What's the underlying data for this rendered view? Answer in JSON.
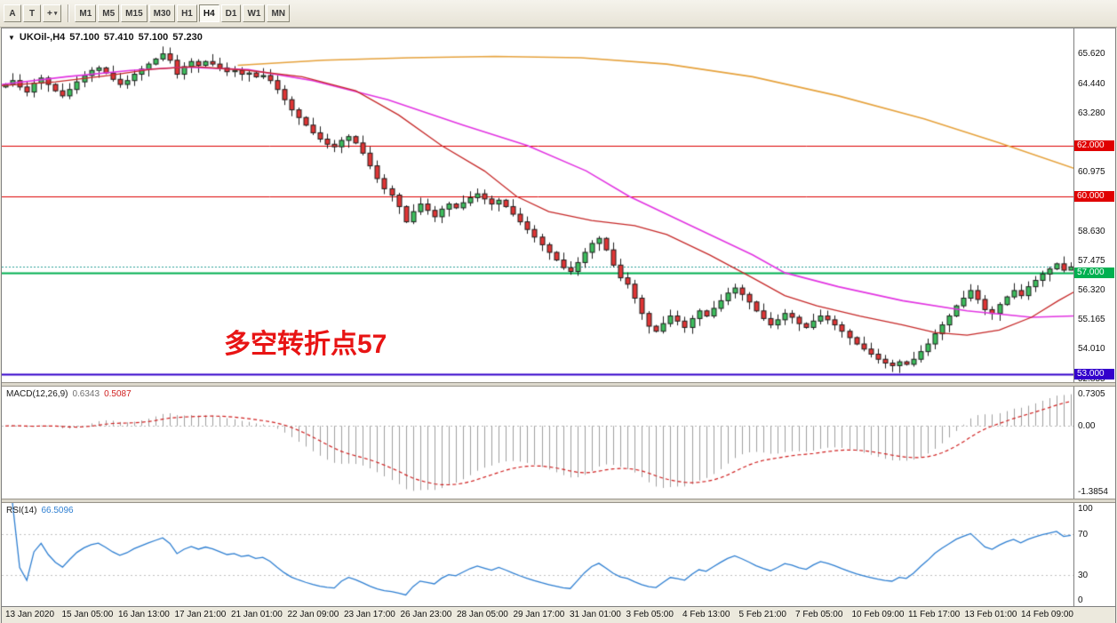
{
  "toolbar": {
    "left_buttons": [
      {
        "name": "tool-a-button",
        "label": "A"
      },
      {
        "name": "tool-t-button",
        "label": "T"
      },
      {
        "name": "drawing-tool-dropdown",
        "label": "+",
        "dropdown": true
      }
    ],
    "timeframes": [
      "M1",
      "M5",
      "M15",
      "M30",
      "H1",
      "H4",
      "D1",
      "W1",
      "MN"
    ],
    "active_timeframe": "H4"
  },
  "chart": {
    "symbol_title": "UKOil-,H4",
    "dropdown_icon": "▼",
    "ohlc": {
      "open": "57.100",
      "high": "57.410",
      "low": "57.100",
      "close": "57.230"
    },
    "annotation": {
      "text": "多空转折点57",
      "color": "#e81414"
    },
    "ylim": [
      52.7,
      66.6
    ],
    "first_open": 64.3,
    "closes": [
      64.4,
      64.55,
      64.3,
      64.1,
      64.45,
      64.65,
      64.4,
      64.15,
      63.95,
      64.2,
      64.5,
      64.75,
      64.95,
      65.05,
      64.85,
      64.6,
      64.4,
      64.55,
      64.8,
      65.0,
      65.2,
      65.4,
      65.6,
      65.35,
      64.8,
      65.1,
      65.3,
      65.15,
      65.3,
      65.2,
      65.05,
      64.9,
      64.95,
      64.8,
      64.85,
      64.7,
      64.75,
      64.55,
      64.2,
      63.8,
      63.4,
      63.1,
      62.8,
      62.5,
      62.25,
      62.05,
      61.95,
      62.2,
      62.35,
      62.1,
      61.7,
      61.2,
      60.7,
      60.3,
      60.05,
      59.6,
      59.0,
      59.4,
      59.7,
      59.45,
      59.2,
      59.5,
      59.7,
      59.55,
      59.75,
      59.95,
      60.1,
      59.9,
      59.7,
      59.85,
      59.6,
      59.3,
      59.0,
      58.7,
      58.4,
      58.1,
      57.8,
      57.5,
      57.2,
      57.05,
      57.4,
      57.8,
      58.15,
      58.35,
      57.9,
      57.3,
      56.8,
      56.55,
      56.0,
      55.4,
      54.9,
      54.7,
      55.0,
      55.3,
      55.1,
      54.85,
      55.2,
      55.5,
      55.3,
      55.6,
      55.9,
      56.2,
      56.4,
      56.15,
      55.85,
      55.5,
      55.2,
      54.95,
      55.15,
      55.4,
      55.25,
      55.0,
      54.85,
      55.1,
      55.3,
      55.15,
      54.95,
      54.7,
      54.45,
      54.2,
      54.0,
      53.8,
      53.6,
      53.45,
      53.35,
      53.5,
      53.4,
      53.6,
      53.9,
      54.2,
      54.6,
      54.95,
      55.3,
      55.7,
      56.0,
      56.3,
      55.95,
      55.55,
      55.4,
      55.75,
      56.05,
      56.3,
      56.1,
      56.45,
      56.7,
      56.95,
      57.15,
      57.35,
      57.1,
      57.23
    ],
    "candle_colors": {
      "up": "#3dbd5d",
      "down": "#e03535",
      "outline": "#1e1e1e"
    },
    "axis_labels": [
      {
        "text": "65.620",
        "price": 65.62
      },
      {
        "text": "64.440",
        "price": 64.44
      },
      {
        "text": "63.280",
        "price": 63.28
      },
      {
        "text": "60.975",
        "price": 60.975
      },
      {
        "text": "58.630",
        "price": 58.63
      },
      {
        "text": "57.475",
        "price": 57.475
      },
      {
        "text": "56.320",
        "price": 56.32
      },
      {
        "text": "55.165",
        "price": 55.165
      },
      {
        "text": "54.010",
        "price": 54.01
      },
      {
        "text": "52.855",
        "price": 52.855
      }
    ],
    "price_tags": [
      {
        "text": "62.000",
        "price": 62.0,
        "color": "#e00000"
      },
      {
        "text": "60.000",
        "price": 60.0,
        "color": "#e00000"
      },
      {
        "text": "57.000",
        "price": 57.0,
        "color": "#00b050"
      },
      {
        "text": "53.000",
        "price": 53.0,
        "color": "#3300cc"
      }
    ],
    "hlines": [
      {
        "price": 62.0,
        "color": "#dd0000",
        "width": 1
      },
      {
        "price": 60.0,
        "color": "#dd0000",
        "width": 1
      },
      {
        "price": 57.0,
        "color": "#00b050",
        "width": 2
      },
      {
        "price": 57.23,
        "color": "#2aa198",
        "width": 1,
        "dotted": true
      },
      {
        "price": 53.0,
        "color": "#3300cc",
        "width": 2
      }
    ],
    "moving_averages": [
      {
        "name": "ma-slow-orange",
        "color": "#e6a23c",
        "width": 1.6,
        "points": [
          [
            0.22,
            65.15
          ],
          [
            0.3,
            65.35
          ],
          [
            0.38,
            65.45
          ],
          [
            0.46,
            65.5
          ],
          [
            0.54,
            65.45
          ],
          [
            0.62,
            65.2
          ],
          [
            0.7,
            64.7
          ],
          [
            0.78,
            63.95
          ],
          [
            0.86,
            63.05
          ],
          [
            0.93,
            62.1
          ],
          [
            1.0,
            61.1
          ]
        ]
      },
      {
        "name": "ma-mid-magenta",
        "color": "#e234e2",
        "width": 1.6,
        "points": [
          [
            0,
            64.4
          ],
          [
            0.06,
            64.7
          ],
          [
            0.12,
            64.95
          ],
          [
            0.17,
            65.08
          ],
          [
            0.23,
            64.98
          ],
          [
            0.29,
            64.55
          ],
          [
            0.36,
            63.8
          ],
          [
            0.43,
            62.8
          ],
          [
            0.49,
            62.0
          ],
          [
            0.545,
            61.0
          ],
          [
            0.585,
            60.0
          ],
          [
            0.64,
            58.9
          ],
          [
            0.7,
            57.7
          ],
          [
            0.73,
            57.0
          ],
          [
            0.78,
            56.45
          ],
          [
            0.84,
            55.9
          ],
          [
            0.9,
            55.5
          ],
          [
            0.96,
            55.25
          ],
          [
            1.0,
            55.3
          ]
        ]
      },
      {
        "name": "ma-fast-red",
        "color": "#c62828",
        "width": 1.3,
        "points": [
          [
            0,
            64.35
          ],
          [
            0.05,
            64.5
          ],
          [
            0.1,
            64.75
          ],
          [
            0.14,
            65.0
          ],
          [
            0.18,
            65.1
          ],
          [
            0.23,
            64.95
          ],
          [
            0.28,
            64.7
          ],
          [
            0.33,
            64.15
          ],
          [
            0.37,
            63.2
          ],
          [
            0.41,
            62.0
          ],
          [
            0.45,
            61.0
          ],
          [
            0.48,
            60.0
          ],
          [
            0.51,
            59.4
          ],
          [
            0.55,
            59.05
          ],
          [
            0.59,
            58.85
          ],
          [
            0.62,
            58.5
          ],
          [
            0.66,
            57.7
          ],
          [
            0.7,
            56.8
          ],
          [
            0.73,
            56.1
          ],
          [
            0.76,
            55.7
          ],
          [
            0.8,
            55.3
          ],
          [
            0.84,
            54.95
          ],
          [
            0.87,
            54.65
          ],
          [
            0.9,
            54.55
          ],
          [
            0.93,
            54.75
          ],
          [
            0.96,
            55.25
          ],
          [
            0.985,
            55.9
          ],
          [
            1.0,
            56.25
          ]
        ]
      }
    ]
  },
  "macd": {
    "label": "MACD(12,26,9)",
    "value_main": "0.6343",
    "value_signal": "0.5087",
    "axis_top": "0.7305",
    "axis_zero": "0.00",
    "axis_bottom": "-1.3854",
    "histogram_color": "#a0a0a0",
    "signal_color": "#d02020"
  },
  "rsi": {
    "label": "RSI(14)",
    "value": "66.5096",
    "line_color": "#2e7fd2",
    "levels": [
      70,
      30
    ],
    "axis_labels": [
      {
        "text": "100",
        "value": 100
      },
      {
        "text": "70",
        "value": 70
      },
      {
        "text": "30",
        "value": 30
      },
      {
        "text": "0",
        "value": 0
      }
    ]
  },
  "time_axis": {
    "labels": [
      "13 Jan 2020",
      "15 Jan 05:00",
      "16 Jan 13:00",
      "17 Jan 21:00",
      "21 Jan 01:00",
      "22 Jan 09:00",
      "23 Jan 17:00",
      "26 Jan 23:00",
      "28 Jan 05:00",
      "29 Jan 17:00",
      "31 Jan 01:00",
      "3 Feb 05:00",
      "4 Feb 13:00",
      "5 Feb 21:00",
      "7 Feb 05:00",
      "10 Feb 09:00",
      "11 Feb 17:00",
      "13 Feb 01:00",
      "14 Feb 09:00"
    ]
  }
}
